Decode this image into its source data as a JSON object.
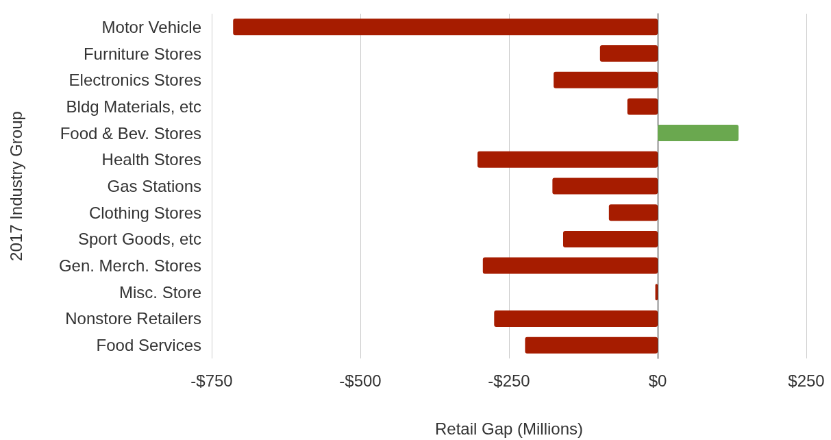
{
  "chart_data": {
    "type": "bar",
    "orientation": "horizontal",
    "xlabel": "Retail Gap (Millions)",
    "ylabel": "2017 Industry Group",
    "categories": [
      "Motor Vehicle",
      "Furniture Stores",
      "Electronics Stores",
      "Bldg Materials, etc",
      "Food & Bev. Stores",
      "Health Stores",
      "Gas Stations",
      "Clothing Stores",
      "Sport Goods, etc",
      "Gen. Merch. Stores",
      "Misc. Store",
      "Nonstore Retailers",
      "Food Services"
    ],
    "values": [
      -714,
      -97,
      -175,
      -51,
      136,
      -303,
      -177,
      -82,
      -159,
      -294,
      -4,
      -275,
      -223
    ],
    "colors": [
      "#a61c00",
      "#a61c00",
      "#a61c00",
      "#a61c00",
      "#6aa84f",
      "#a61c00",
      "#a61c00",
      "#a61c00",
      "#a61c00",
      "#a61c00",
      "#a61c00",
      "#a61c00",
      "#a61c00"
    ],
    "xlim": [
      -750,
      250
    ],
    "xticks": [
      {
        "value": -750,
        "label": "-$750"
      },
      {
        "value": -500,
        "label": "-$500"
      },
      {
        "value": -250,
        "label": "-$250"
      },
      {
        "value": 0,
        "label": "$0"
      },
      {
        "value": 250,
        "label": "$250"
      }
    ],
    "grid": "x"
  }
}
